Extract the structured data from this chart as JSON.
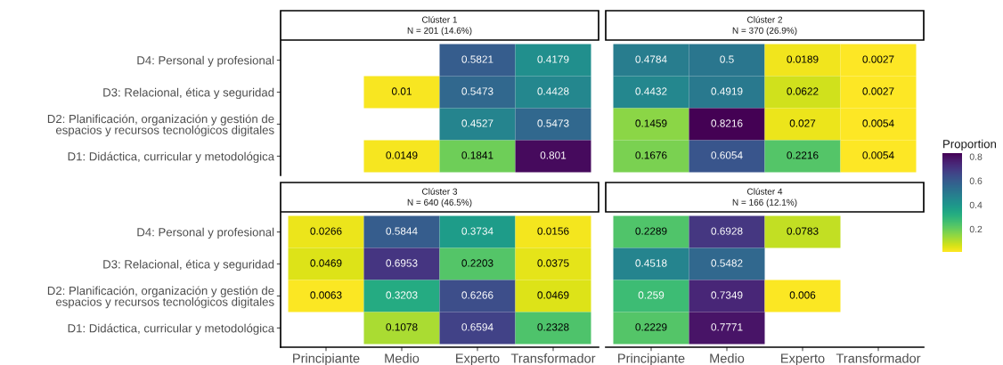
{
  "chart_data": [
    {
      "type": "heatmap",
      "title": "Clúster 1",
      "subtitle": "N = 201 (14.6%)",
      "categories": [
        "Principiante",
        "Medio",
        "Experto",
        "Transformador"
      ],
      "y_categories": [
        "D4: Personal y profesional",
        "D3: Relacional, ética y seguridad",
        "D2: Planificación, organización y gestión de\nespacios y recursos tecnológicos digitales",
        "D1: Didáctica, curricular y metodológica"
      ],
      "cells": [
        [
          null,
          null,
          0.5821,
          0.4179
        ],
        [
          null,
          0.01,
          0.5473,
          0.4428
        ],
        [
          null,
          null,
          0.4527,
          0.5473
        ],
        [
          null,
          0.0149,
          0.1841,
          0.801
        ]
      ],
      "data_labels": true,
      "tick_labels": "y"
    },
    {
      "type": "heatmap",
      "title": "Clúster 2",
      "subtitle": "N = 370 (26.9%)",
      "categories": [
        "Principiante",
        "Medio",
        "Experto",
        "Transformador"
      ],
      "y_categories": [
        "D4: Personal y profesional",
        "D3: Relacional, ética y seguridad",
        "D2: Planificación, organización y gestión de\nespacios y recursos tecnológicos digitales",
        "D1: Didáctica, curricular y metodológica"
      ],
      "cells": [
        [
          0.4784,
          0.5,
          0.0189,
          0.0027
        ],
        [
          0.4432,
          0.4919,
          0.0622,
          0.0027
        ],
        [
          0.1459,
          0.8216,
          0.027,
          0.0054
        ],
        [
          0.1676,
          0.6054,
          0.2216,
          0.0054
        ]
      ],
      "clim": [
        0.0027,
        0.8216
      ],
      "clabel": "Proportion",
      "cticks": [
        0.2,
        0.4,
        0.6,
        0.8
      ],
      "data_labels": true,
      "tick_labels": false
    },
    {
      "type": "heatmap",
      "title": "Clúster 3",
      "subtitle": "N = 640 (46.5%)",
      "categories": [
        "Principiante",
        "Medio",
        "Experto",
        "Transformador"
      ],
      "y_categories": [
        "D4: Personal y profesional",
        "D3: Relacional, ética y seguridad",
        "D2: Planificación, organización y gestión de\nespacios y recursos tecnológicos digitales",
        "D1: Didáctica, curricular y metodológica"
      ],
      "cells": [
        [
          0.0266,
          0.5844,
          0.3734,
          0.0156
        ],
        [
          0.0469,
          0.6953,
          0.2203,
          0.0375
        ],
        [
          0.0063,
          0.3203,
          0.6266,
          0.0469
        ],
        [
          null,
          0.1078,
          0.6594,
          0.2328
        ]
      ],
      "data_labels": true
    },
    {
      "type": "heatmap",
      "title": "Clúster 4",
      "subtitle": "N = 166 (12.1%)",
      "categories": [
        "Principiante",
        "Medio",
        "Experto",
        "Transformador"
      ],
      "y_categories": [
        "D4: Personal y profesional",
        "D3: Relacional, ética y seguridad",
        "D2: Planificación, organización y gestión de\nespacios y recursos tecnológicos digitales",
        "D1: Didáctica, curricular y metodológica"
      ],
      "cells": [
        [
          0.2289,
          0.6928,
          0.0783,
          null
        ],
        [
          0.4518,
          0.5482,
          null,
          null
        ],
        [
          0.259,
          0.7349,
          0.006,
          null
        ],
        [
          0.2229,
          0.7771,
          null,
          null
        ]
      ],
      "data_labels": true,
      "tick_labels": "x"
    }
  ]
}
